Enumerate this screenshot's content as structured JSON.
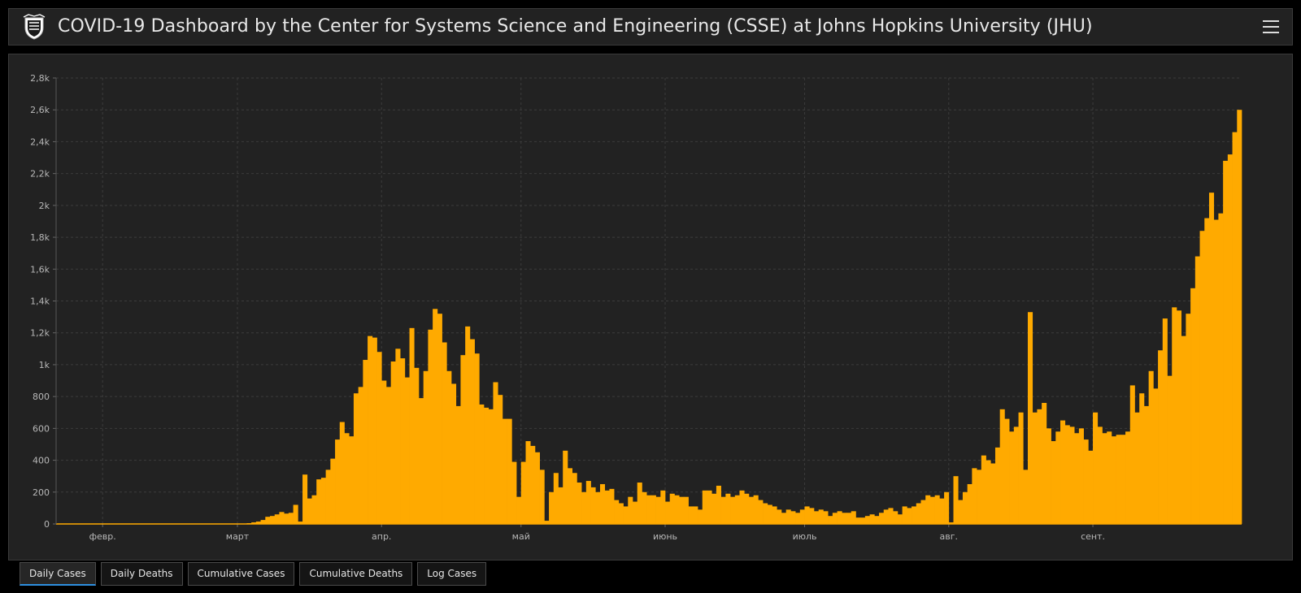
{
  "header": {
    "title": "COVID-19 Dashboard by the Center for Systems Science and Engineering (CSSE) at Johns Hopkins University (JHU)"
  },
  "tabs": [
    {
      "label": "Daily Cases",
      "active": true
    },
    {
      "label": "Daily Deaths",
      "active": false
    },
    {
      "label": "Cumulative Cases",
      "active": false
    },
    {
      "label": "Cumulative Deaths",
      "active": false
    },
    {
      "label": "Log Cases",
      "active": false
    }
  ],
  "colors": {
    "bar": "#ffaa00",
    "background": "#222222",
    "accent": "#2e8fe0"
  },
  "chart_data": {
    "type": "bar",
    "title": "",
    "xlabel": "",
    "ylabel": "",
    "ylim": [
      0,
      2800
    ],
    "y_ticks": [
      0,
      200,
      400,
      600,
      800,
      1000,
      1200,
      1400,
      1600,
      1800,
      2000,
      2200,
      2400,
      2600,
      2800
    ],
    "y_tick_labels": [
      "0",
      "200",
      "400",
      "600",
      "800",
      "1k",
      "1,2k",
      "1,4k",
      "1,6k",
      "1,8k",
      "2k",
      "2,2k",
      "2,4k",
      "2,6k",
      "2,8k"
    ],
    "x_ticks": [
      {
        "label": "февр.",
        "day": 10
      },
      {
        "label": "март",
        "day": 39
      },
      {
        "label": "апр.",
        "day": 70
      },
      {
        "label": "май",
        "day": 100
      },
      {
        "label": "июнь",
        "day": 131
      },
      {
        "label": "июль",
        "day": 161
      },
      {
        "label": "авг.",
        "day": 192
      },
      {
        "label": "сент.",
        "day": 223
      }
    ],
    "grid": true,
    "values": [
      0,
      0,
      0,
      0,
      0,
      0,
      0,
      0,
      0,
      0,
      0,
      0,
      0,
      0,
      0,
      0,
      0,
      0,
      0,
      0,
      0,
      0,
      0,
      0,
      0,
      0,
      0,
      0,
      0,
      0,
      0,
      0,
      0,
      0,
      0,
      0,
      0,
      0,
      0,
      0,
      0,
      5,
      10,
      15,
      25,
      45,
      50,
      60,
      75,
      65,
      70,
      120,
      15,
      310,
      160,
      180,
      280,
      290,
      340,
      410,
      530,
      640,
      570,
      550,
      820,
      860,
      1030,
      1180,
      1170,
      1080,
      900,
      860,
      1020,
      1100,
      1040,
      920,
      1230,
      980,
      790,
      960,
      1220,
      1350,
      1320,
      1140,
      960,
      880,
      740,
      1060,
      1240,
      1160,
      1070,
      750,
      730,
      720,
      890,
      810,
      660,
      660,
      390,
      170,
      390,
      520,
      490,
      450,
      340,
      20,
      200,
      320,
      230,
      460,
      350,
      320,
      260,
      200,
      270,
      230,
      200,
      250,
      210,
      220,
      150,
      130,
      110,
      170,
      140,
      260,
      200,
      180,
      180,
      170,
      210,
      140,
      190,
      180,
      170,
      170,
      110,
      110,
      90,
      210,
      210,
      190,
      240,
      170,
      190,
      170,
      180,
      210,
      190,
      170,
      180,
      150,
      130,
      120,
      110,
      90,
      70,
      90,
      80,
      70,
      90,
      110,
      100,
      80,
      90,
      80,
      50,
      70,
      80,
      70,
      70,
      80,
      40,
      40,
      50,
      60,
      50,
      70,
      90,
      100,
      80,
      60,
      110,
      100,
      110,
      130,
      150,
      180,
      170,
      180,
      160,
      200,
      10,
      300,
      150,
      200,
      250,
      350,
      340,
      430,
      400,
      380,
      480,
      720,
      660,
      580,
      610,
      700,
      340,
      1330,
      700,
      720,
      760,
      600,
      520,
      580,
      650,
      620,
      610,
      570,
      600,
      530,
      460,
      700,
      610,
      570,
      580,
      550,
      560,
      560,
      580,
      870,
      700,
      820,
      740,
      960,
      850,
      1090,
      1290,
      930,
      1360,
      1340,
      1180,
      1320,
      1480,
      1680,
      1840,
      1920,
      2080,
      1910,
      1950,
      2280,
      2320,
      2460,
      2600
    ]
  }
}
